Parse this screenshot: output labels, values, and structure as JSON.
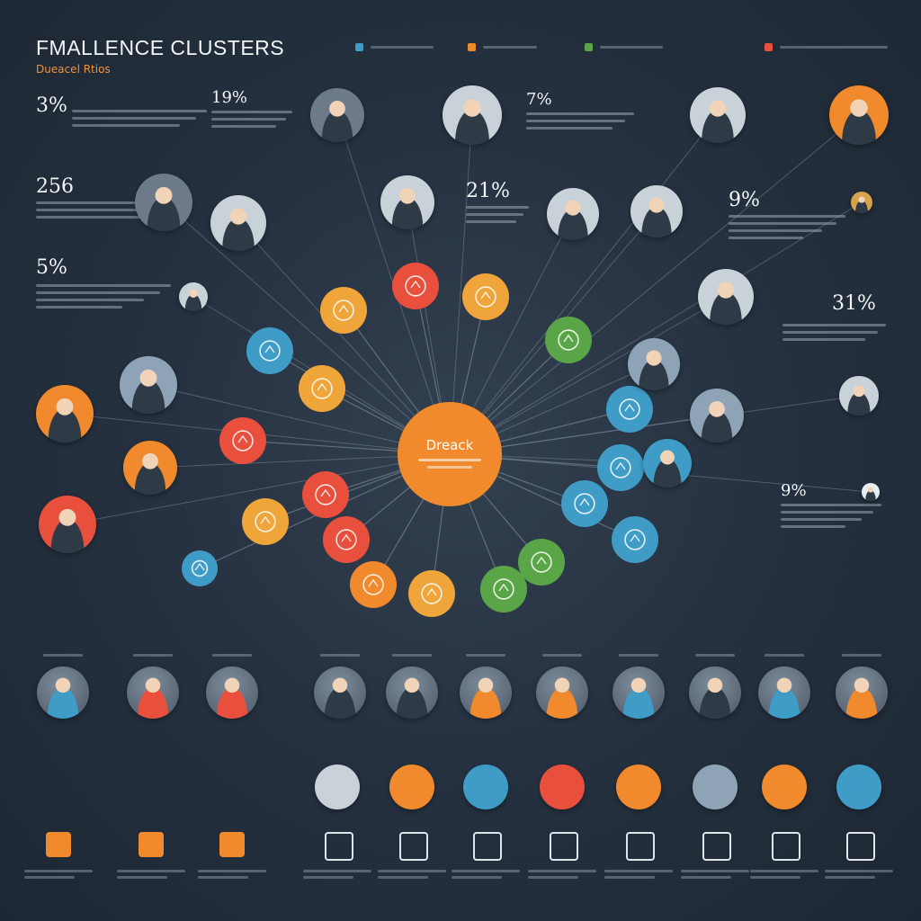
{
  "header": {
    "title": "FMALLENCE CLUSTERS",
    "subtitle": "Dueacel Rtios"
  },
  "legend": {
    "items": [
      {
        "label": "",
        "color": "#3f9cc7"
      },
      {
        "label": "",
        "color": "#f08a2c"
      },
      {
        "label": "",
        "color": "#5aa547"
      },
      {
        "label": "",
        "color": "#e84f3d"
      }
    ]
  },
  "stats": [
    {
      "value": "3%",
      "label": ""
    },
    {
      "value": "256",
      "label": ""
    },
    {
      "value": "5%",
      "label": ""
    },
    {
      "value": "19%",
      "label": ""
    },
    {
      "value": "7%",
      "label": ""
    },
    {
      "value": "21%",
      "label": ""
    },
    {
      "value": "9%",
      "label": ""
    },
    {
      "value": "31%",
      "label": ""
    },
    {
      "value": "9%",
      "label": ""
    }
  ],
  "center": {
    "label": "Dreack",
    "color": "#f08a2c"
  },
  "nodes": [
    {
      "color": "#3f9cc7",
      "icon": "user-icon"
    },
    {
      "color": "#f0a53a",
      "icon": "lightbulb-icon"
    },
    {
      "color": "#e84f3d",
      "icon": "lightbulb-icon"
    },
    {
      "color": "#f0a53a",
      "icon": "chart-icon"
    },
    {
      "color": "#5aa547",
      "icon": "chart-icon"
    },
    {
      "color": "#3f9cc7",
      "icon": "document-icon"
    },
    {
      "color": "#3f9cc7",
      "icon": "people-icon"
    },
    {
      "color": "#3f9cc7",
      "icon": "gear-icon"
    },
    {
      "color": "#3f9cc7",
      "icon": "map-icon"
    },
    {
      "color": "#5aa547",
      "icon": "tools-icon"
    },
    {
      "color": "#5aa547",
      "icon": "cart-icon"
    },
    {
      "color": "#f0a53a",
      "icon": "box-icon"
    },
    {
      "color": "#f08a2c",
      "icon": "pen-icon"
    },
    {
      "color": "#e84f3d",
      "icon": "pen-icon"
    },
    {
      "color": "#e84f3d",
      "icon": "flag-icon"
    },
    {
      "color": "#e84f3d",
      "icon": "car-icon"
    },
    {
      "color": "#f0a53a",
      "icon": "chat-icon"
    },
    {
      "color": "#f0a53a",
      "icon": "gear-icon"
    },
    {
      "color": "#3f9cc7",
      "icon": "cloud-icon"
    }
  ],
  "people_row": {
    "headers": [
      "",
      "",
      "",
      "",
      "",
      "",
      "",
      "",
      "",
      "",
      "",
      ""
    ]
  },
  "bottom_row": {
    "headers": [
      "",
      "",
      "",
      "",
      "",
      "",
      "",
      "",
      "",
      "",
      "",
      ""
    ]
  }
}
